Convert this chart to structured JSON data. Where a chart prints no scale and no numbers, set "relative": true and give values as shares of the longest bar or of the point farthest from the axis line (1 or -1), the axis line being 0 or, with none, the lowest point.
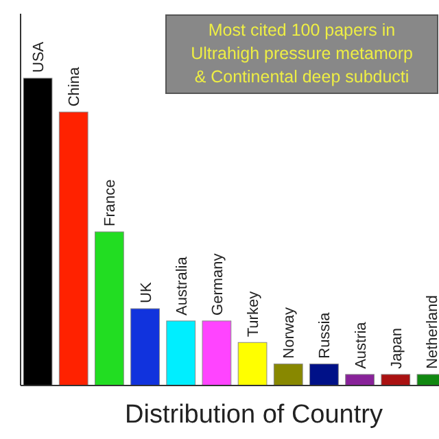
{
  "chart_data": {
    "type": "bar",
    "relative": true,
    "title": "Most cited 100 papers in\nUltrahigh pressure metamorp\n& Continental deep subducti",
    "xlabel": "Distribution of Country",
    "categories": [
      "USA",
      "China",
      "France",
      "UK",
      "Australia",
      "Germany",
      "Turkey",
      "Norway",
      "Russia",
      "Austria",
      "Japan",
      "Netherland"
    ],
    "values": [
      1,
      0.89,
      0.5,
      0.25,
      0.21,
      0.21,
      0.14,
      0.07,
      0.07,
      0.036,
      0.036,
      0.036
    ],
    "colors": [
      "#000000",
      "#ff2200",
      "#22dd22",
      "#1133dd",
      "#00eeff",
      "#ff44ff",
      "#ffff00",
      "#888800",
      "#001188",
      "#882299",
      "#aa1111",
      "#118811"
    ],
    "grid": false
  }
}
